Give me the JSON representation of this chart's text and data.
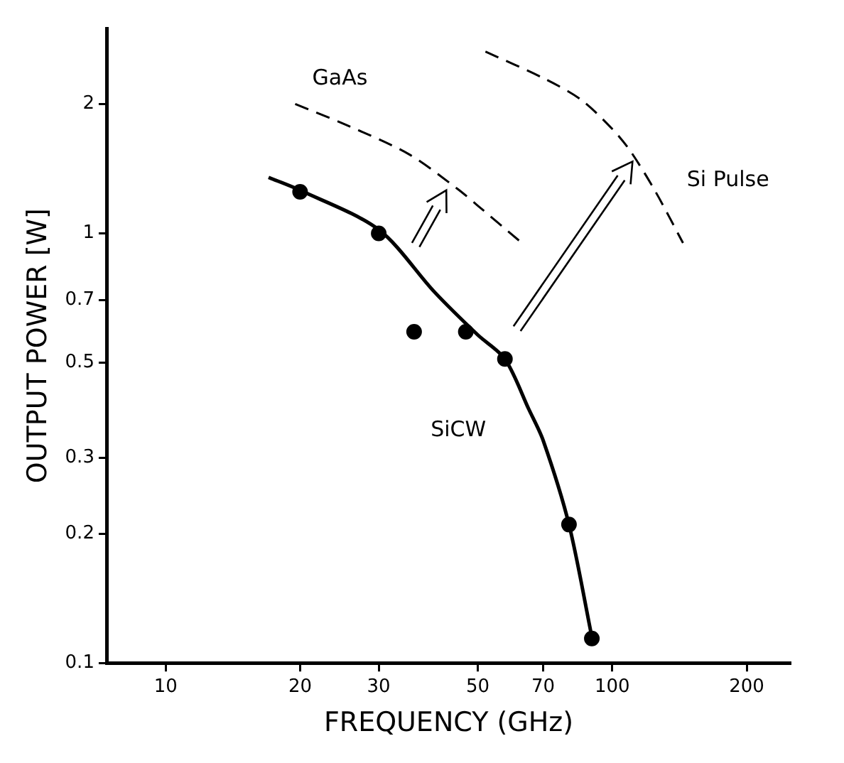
{
  "chart_data": {
    "type": "line",
    "xlabel": "FREQUENCY (GHz)",
    "ylabel": "OUTPUT POWER [W]",
    "log": "xy",
    "grid": false,
    "legend": false,
    "xlim": [
      7.4,
      250
    ],
    "xticks": [
      10,
      20,
      30,
      50,
      70,
      100,
      200
    ],
    "ylim": [
      0.1,
      3
    ],
    "yticks": [
      0.1,
      0.2,
      0.3,
      0.5,
      0.7,
      1,
      2
    ],
    "series": [
      {
        "type": "scatter",
        "marker": "circle",
        "color": "#000000",
        "x": [
          20,
          30,
          36,
          47,
          57.5,
          80,
          90
        ],
        "values": [
          1.25,
          1.0,
          0.59,
          0.59,
          0.51,
          0.21,
          0.114
        ]
      },
      {
        "name": "SiCW",
        "type": "line",
        "line_style": "solid",
        "color": "#000000",
        "x": [
          17,
          20,
          30,
          40,
          50,
          57.5,
          65,
          70,
          80,
          90
        ],
        "values": [
          1.35,
          1.26,
          1.02,
          0.73,
          0.58,
          0.51,
          0.39,
          0.33,
          0.21,
          0.115
        ]
      },
      {
        "name": "GaAs",
        "type": "line",
        "line_style": "dashed",
        "color": "#000000",
        "x": [
          19.5,
          25,
          35,
          45,
          50,
          62
        ],
        "values": [
          2.0,
          1.8,
          1.53,
          1.27,
          1.16,
          0.96
        ]
      },
      {
        "name": "Si Pulse",
        "type": "line",
        "line_style": "dashed",
        "color": "#000000",
        "x": [
          52,
          70,
          85,
          100,
          110,
          125,
          144
        ],
        "values": [
          2.65,
          2.3,
          2.05,
          1.75,
          1.55,
          1.25,
          0.95
        ]
      }
    ]
  }
}
